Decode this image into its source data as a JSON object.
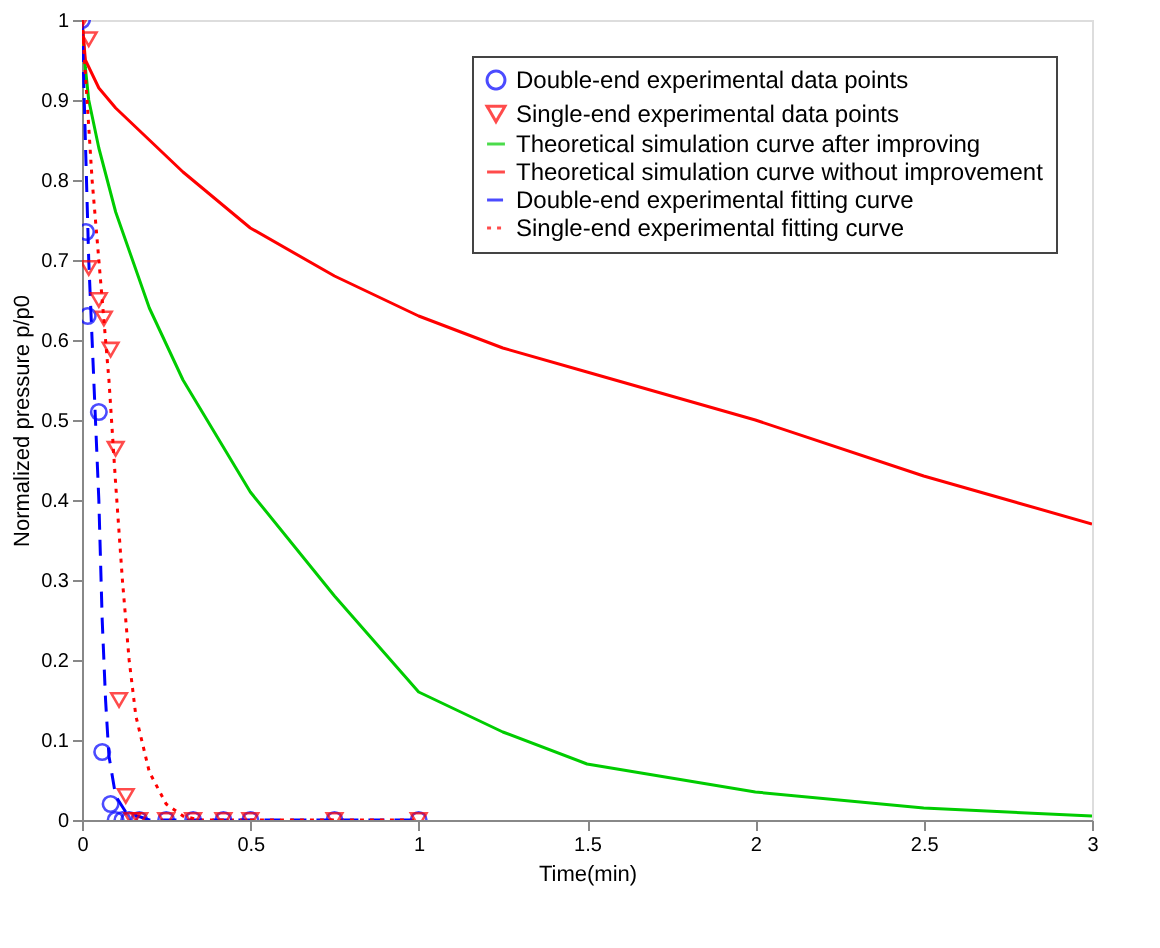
{
  "chart_data": {
    "type": "line",
    "xlabel": "Time(min)",
    "ylabel": "Normalized pressure p/p0",
    "xlim": [
      0,
      3
    ],
    "xticks": [
      0,
      0.5,
      1,
      1.5,
      2,
      2.5,
      3
    ],
    "ylim": [
      0,
      1
    ],
    "yticks": [
      0,
      0.1,
      0.2,
      0.3,
      0.4,
      0.5,
      0.6,
      0.7,
      0.8,
      0.9,
      1
    ],
    "grid": false,
    "legend": "top right",
    "series": [
      {
        "name": "Double-end experimental data points",
        "type": "scatter",
        "marker": "circle",
        "color": "#0000ff",
        "x": [
          0,
          0.012,
          0.017,
          0.05,
          0.06,
          0.085,
          0.1,
          0.12,
          0.14,
          0.17,
          0.25,
          0.33,
          0.42,
          0.5,
          0.75,
          1
        ],
        "values": [
          1,
          0.735,
          0.63,
          0.51,
          0.085,
          0.02,
          0,
          0,
          0,
          0,
          0,
          0,
          0,
          0,
          0,
          0
        ]
      },
      {
        "name": "Single-end experimental data points",
        "type": "scatter",
        "marker": "triangle",
        "color": "#ff0000",
        "x": [
          0,
          0.02,
          0.02,
          0.05,
          0.065,
          0.085,
          0.1,
          0.11,
          0.13,
          0.15,
          0.17,
          0.25,
          0.33,
          0.42,
          0.5,
          0.75,
          1
        ],
        "values": [
          1,
          0.976,
          0.69,
          0.65,
          0.627,
          0.588,
          0.464,
          0.15,
          0.03,
          0,
          0,
          0,
          0,
          0,
          0,
          0,
          0
        ]
      },
      {
        "name": "Theoretical simulation curve after improving",
        "type": "line",
        "line_style": "solid",
        "color": "#00cc00",
        "x": [
          0,
          0.01,
          0.02,
          0.05,
          0.1,
          0.2,
          0.3,
          0.5,
          0.75,
          1,
          1.25,
          1.5,
          2,
          2.5,
          3
        ],
        "values": [
          1,
          0.94,
          0.9,
          0.84,
          0.76,
          0.64,
          0.55,
          0.41,
          0.28,
          0.16,
          0.11,
          0.07,
          0.035,
          0.015,
          0.005
        ]
      },
      {
        "name": "Theoretical simulation curve without improvement",
        "type": "line",
        "line_style": "solid",
        "color": "#ff0000",
        "x": [
          0,
          0.01,
          0.05,
          0.1,
          0.2,
          0.3,
          0.5,
          0.75,
          1,
          1.25,
          1.5,
          2,
          2.5,
          3
        ],
        "values": [
          1,
          0.95,
          0.915,
          0.89,
          0.85,
          0.81,
          0.74,
          0.68,
          0.63,
          0.59,
          0.56,
          0.5,
          0.43,
          0.37
        ]
      },
      {
        "name": "Double-end experimental fitting curve",
        "type": "line",
        "line_style": "dashed",
        "color": "#0000ff",
        "x": [
          0,
          0.01,
          0.02,
          0.03,
          0.04,
          0.05,
          0.06,
          0.07,
          0.08,
          0.1,
          0.13,
          0.2,
          1
        ],
        "values": [
          1,
          0.85,
          0.7,
          0.6,
          0.5,
          0.4,
          0.25,
          0.15,
          0.08,
          0.03,
          0.01,
          0,
          0
        ]
      },
      {
        "name": "Single-end experimental fitting curve",
        "type": "line",
        "line_style": "dotted",
        "color": "#ff0000",
        "x": [
          0,
          0.03,
          0.06,
          0.08,
          0.1,
          0.12,
          0.14,
          0.16,
          0.2,
          0.25,
          0.3,
          0.35,
          1
        ],
        "values": [
          1,
          0.8,
          0.65,
          0.55,
          0.42,
          0.3,
          0.2,
          0.13,
          0.06,
          0.02,
          0.005,
          0,
          0
        ]
      }
    ]
  }
}
